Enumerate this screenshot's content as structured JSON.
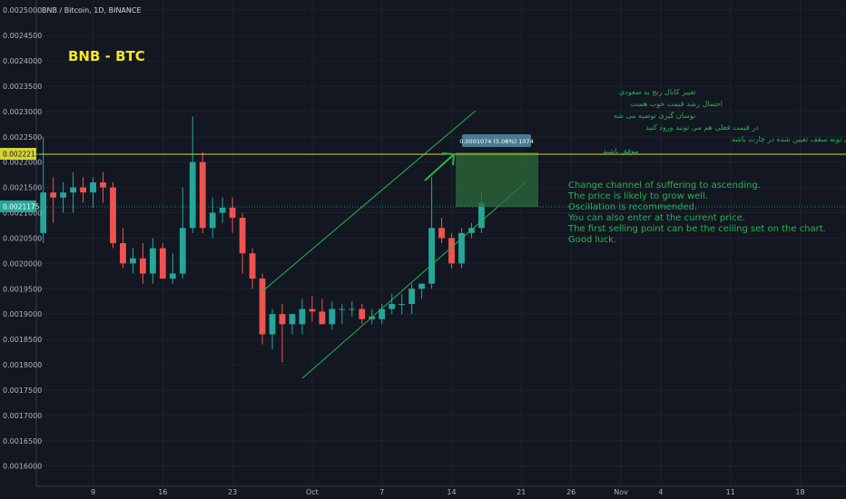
{
  "header": {
    "symbol_line": "BNB / Bitcoin, 1D, BINANCE"
  },
  "chart_title": "BNB - BTC",
  "price_line_label": "0.0022213",
  "current_price_label": "0.0021175",
  "target_box_label": "0.0001074 (5.08%) 1074",
  "notes_en": [
    "Change channel of suffering to ascending.",
    "The price is likely to grow well.",
    "Oscillation is recommended.",
    "You can also enter at the current price.",
    "The first selling point can be the ceiling set on the chart.",
    "Good luck."
  ],
  "notes_fa": [
    "تغییر کانال رنج به صعودی",
    "احتمال رشد قیمت خوب هست",
    "نوسان گیری توصیه می شه",
    "در قیمت فعلی هم می تونید ورود کنید",
    "اولین نقطه فروش، می تونه سقف تعیین شده در چارت باشه",
    "موفق باشید"
  ],
  "colors": {
    "up": "#26a69a",
    "down": "#ef5350",
    "background": "#131722",
    "annotation": "#2ab24d",
    "price_line": "#d4d435"
  },
  "chart_data": {
    "type": "candlestick",
    "yticks": [
      "0.0025000",
      "0.0024500",
      "0.0024000",
      "0.0023500",
      "0.0023000",
      "0.0022500",
      "0.0022000",
      "0.0021500",
      "0.0021000",
      "0.0020500",
      "0.0020000",
      "0.0019500",
      "0.0019000",
      "0.0018500",
      "0.0018000",
      "0.0017500",
      "0.0017000",
      "0.0016500",
      "0.0016000"
    ],
    "ylim": [
      0.00156,
      0.00252
    ],
    "xticks": [
      {
        "label": "9",
        "day": 9
      },
      {
        "label": "16",
        "day": 16
      },
      {
        "label": "23",
        "day": 23
      },
      {
        "label": "Oct",
        "day": 31
      },
      {
        "label": "7",
        "day": 38
      },
      {
        "label": "14",
        "day": 45
      },
      {
        "label": "21",
        "day": 52
      },
      {
        "label": "26",
        "day": 57
      },
      {
        "label": "Nov",
        "day": 62
      },
      {
        "label": "4",
        "day": 66
      },
      {
        "label": "11",
        "day": 73
      },
      {
        "label": "18",
        "day": 80
      }
    ],
    "xlim": [
      3.3,
      84.6
    ],
    "candles": [
      {
        "d": 4,
        "o": 0.00206,
        "h": 0.00225,
        "l": 0.00204,
        "c": 0.00214
      },
      {
        "d": 5,
        "o": 0.00214,
        "h": 0.00217,
        "l": 0.00208,
        "c": 0.00213
      },
      {
        "d": 6,
        "o": 0.00213,
        "h": 0.00216,
        "l": 0.0021,
        "c": 0.00214
      },
      {
        "d": 7,
        "o": 0.00214,
        "h": 0.00218,
        "l": 0.0021,
        "c": 0.00215
      },
      {
        "d": 8,
        "o": 0.00215,
        "h": 0.00217,
        "l": 0.00212,
        "c": 0.00214
      },
      {
        "d": 9,
        "o": 0.00214,
        "h": 0.00217,
        "l": 0.00211,
        "c": 0.00216
      },
      {
        "d": 10,
        "o": 0.00216,
        "h": 0.00218,
        "l": 0.00212,
        "c": 0.00215
      },
      {
        "d": 11,
        "o": 0.00215,
        "h": 0.00216,
        "l": 0.00203,
        "c": 0.00204
      },
      {
        "d": 12,
        "o": 0.00204,
        "h": 0.00207,
        "l": 0.00199,
        "c": 0.002
      },
      {
        "d": 13,
        "o": 0.002,
        "h": 0.00203,
        "l": 0.00198,
        "c": 0.00201
      },
      {
        "d": 14,
        "o": 0.00201,
        "h": 0.00204,
        "l": 0.00196,
        "c": 0.00198
      },
      {
        "d": 15,
        "o": 0.00198,
        "h": 0.00205,
        "l": 0.00196,
        "c": 0.00203
      },
      {
        "d": 16,
        "o": 0.00203,
        "h": 0.00204,
        "l": 0.00197,
        "c": 0.00197
      },
      {
        "d": 17,
        "o": 0.00197,
        "h": 0.00202,
        "l": 0.00196,
        "c": 0.00198
      },
      {
        "d": 18,
        "o": 0.00198,
        "h": 0.00215,
        "l": 0.00197,
        "c": 0.00207
      },
      {
        "d": 19,
        "o": 0.00207,
        "h": 0.00229,
        "l": 0.00206,
        "c": 0.0022
      },
      {
        "d": 20,
        "o": 0.0022,
        "h": 0.00222,
        "l": 0.00206,
        "c": 0.00207
      },
      {
        "d": 21,
        "o": 0.00207,
        "h": 0.00213,
        "l": 0.00205,
        "c": 0.0021
      },
      {
        "d": 22,
        "o": 0.0021,
        "h": 0.00213,
        "l": 0.00208,
        "c": 0.00211
      },
      {
        "d": 23,
        "o": 0.00211,
        "h": 0.00213,
        "l": 0.00206,
        "c": 0.00209
      },
      {
        "d": 24,
        "o": 0.00209,
        "h": 0.0021,
        "l": 0.00198,
        "c": 0.00202
      },
      {
        "d": 25,
        "o": 0.00202,
        "h": 0.00203,
        "l": 0.00195,
        "c": 0.00197
      },
      {
        "d": 26,
        "o": 0.00197,
        "h": 0.00198,
        "l": 0.00184,
        "c": 0.00186
      },
      {
        "d": 27,
        "o": 0.00186,
        "h": 0.00191,
        "l": 0.00183,
        "c": 0.0019
      },
      {
        "d": 28,
        "o": 0.0019,
        "h": 0.00192,
        "l": 0.001805,
        "c": 0.00188
      },
      {
        "d": 29,
        "o": 0.00188,
        "h": 0.0019,
        "l": 0.00186,
        "c": 0.0019
      },
      {
        "d": 30,
        "o": 0.00188,
        "h": 0.00193,
        "l": 0.00186,
        "c": 0.00191
      },
      {
        "d": 31,
        "o": 0.00191,
        "h": 0.001935,
        "l": 0.001885,
        "c": 0.001905
      },
      {
        "d": 32,
        "o": 0.001905,
        "h": 0.00193,
        "l": 0.00188,
        "c": 0.00188
      },
      {
        "d": 33,
        "o": 0.00188,
        "h": 0.001925,
        "l": 0.00187,
        "c": 0.00191
      },
      {
        "d": 34,
        "o": 0.00191,
        "h": 0.00192,
        "l": 0.00188,
        "c": 0.00191
      },
      {
        "d": 35,
        "o": 0.00191,
        "h": 0.001925,
        "l": 0.001895,
        "c": 0.00191
      },
      {
        "d": 36,
        "o": 0.00191,
        "h": 0.00192,
        "l": 0.00188,
        "c": 0.00189
      },
      {
        "d": 37,
        "o": 0.00189,
        "h": 0.00191,
        "l": 0.00188,
        "c": 0.001895
      },
      {
        "d": 38,
        "o": 0.00189,
        "h": 0.00192,
        "l": 0.00188,
        "c": 0.00191
      },
      {
        "d": 39,
        "o": 0.00191,
        "h": 0.00194,
        "l": 0.0019,
        "c": 0.00192
      },
      {
        "d": 40,
        "o": 0.00192,
        "h": 0.00194,
        "l": 0.0019,
        "c": 0.00192
      },
      {
        "d": 41,
        "o": 0.00192,
        "h": 0.00196,
        "l": 0.0019,
        "c": 0.00195
      },
      {
        "d": 42,
        "o": 0.00195,
        "h": 0.00196,
        "l": 0.00193,
        "c": 0.00196
      },
      {
        "d": 43,
        "o": 0.00196,
        "h": 0.00217,
        "l": 0.00195,
        "c": 0.00207
      },
      {
        "d": 44,
        "o": 0.00207,
        "h": 0.00209,
        "l": 0.00204,
        "c": 0.00205
      },
      {
        "d": 45,
        "o": 0.00205,
        "h": 0.00206,
        "l": 0.00199,
        "c": 0.002
      },
      {
        "d": 46,
        "o": 0.002,
        "h": 0.00207,
        "l": 0.00199,
        "c": 0.00206
      },
      {
        "d": 47,
        "o": 0.00206,
        "h": 0.00208,
        "l": 0.00205,
        "c": 0.00207
      },
      {
        "d": 48,
        "o": 0.00207,
        "h": 0.00214,
        "l": 0.00206,
        "c": 0.00212
      }
    ]
  }
}
